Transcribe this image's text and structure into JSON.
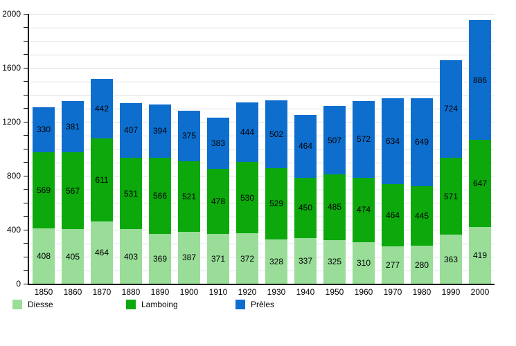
{
  "chart_data": {
    "type": "bar",
    "stacked": true,
    "title": "",
    "xlabel": "",
    "ylabel": "",
    "categories": [
      "1850",
      "1860",
      "1870",
      "1880",
      "1890",
      "1900",
      "1910",
      "1920",
      "1930",
      "1940",
      "1950",
      "1960",
      "1970",
      "1980",
      "1990",
      "2000"
    ],
    "series": [
      {
        "name": "Diesse",
        "color": "#99dd99",
        "values": [
          408,
          405,
          464,
          403,
          369,
          387,
          371,
          372,
          328,
          337,
          325,
          310,
          277,
          280,
          363,
          419
        ]
      },
      {
        "name": "Lamboing",
        "color": "#0ca80c",
        "values": [
          569,
          567,
          611,
          531,
          566,
          521,
          478,
          530,
          529,
          450,
          485,
          474,
          464,
          445,
          571,
          647
        ]
      },
      {
        "name": "Prêles",
        "color": "#0e6ece",
        "values": [
          330,
          381,
          442,
          407,
          394,
          375,
          383,
          444,
          502,
          464,
          507,
          572,
          634,
          649,
          724,
          886
        ]
      }
    ],
    "ylim": [
      0,
      2000
    ],
    "y_major_step": 400,
    "y_minor_step": 100,
    "y_tick_labels": [
      "0",
      "400",
      "800",
      "1200",
      "1600",
      "2000"
    ],
    "grid": true,
    "value_labels": true,
    "legend_position": "bottom"
  },
  "legend": {
    "items": [
      "Diesse",
      "Lamboing",
      "Prêles"
    ]
  },
  "colors": {
    "axis": "#000000",
    "gridline": "#dedede",
    "background": "#ffffff"
  }
}
